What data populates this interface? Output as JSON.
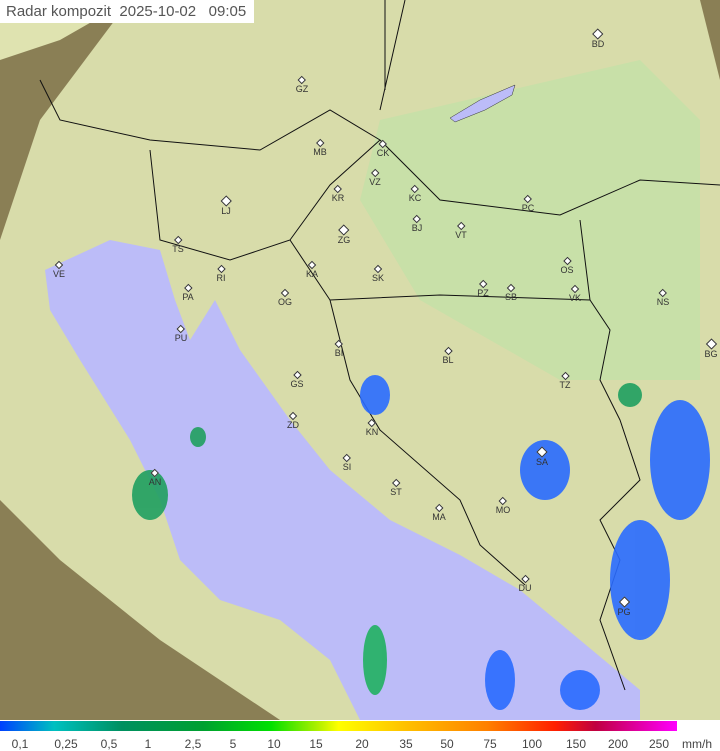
{
  "title": {
    "label": "Radar kompozit",
    "date": "2025-10-02",
    "time": "09:05"
  },
  "colors": {
    "sea": "#bcbcf8",
    "land": "#e8ecb8",
    "outside": "#8a7f55",
    "rain_low": "#2060ff",
    "rain_mid": "#00c060"
  },
  "cities": [
    "BD",
    "GZ",
    "MB",
    "CK",
    "VZ",
    "KR",
    "KC",
    "LJ",
    "PC",
    "BJ",
    "ZG",
    "VT",
    "TS",
    "VE",
    "KA",
    "SK",
    "OS",
    "RI",
    "PA",
    "OG",
    "PZ",
    "SB",
    "VK",
    "NS",
    "PU",
    "BI",
    "BL",
    "BG",
    "GS",
    "TZ",
    "ZD",
    "KN",
    "SI",
    "SA",
    "AN",
    "ST",
    "MO",
    "MA",
    "DU",
    "PG"
  ],
  "legend": {
    "ticks": [
      "0,1",
      "0,25",
      "0,5",
      "1",
      "2,5",
      "5",
      "10",
      "15",
      "20",
      "35",
      "50",
      "75",
      "100",
      "150",
      "200",
      "250"
    ],
    "unit": "mm/h"
  }
}
